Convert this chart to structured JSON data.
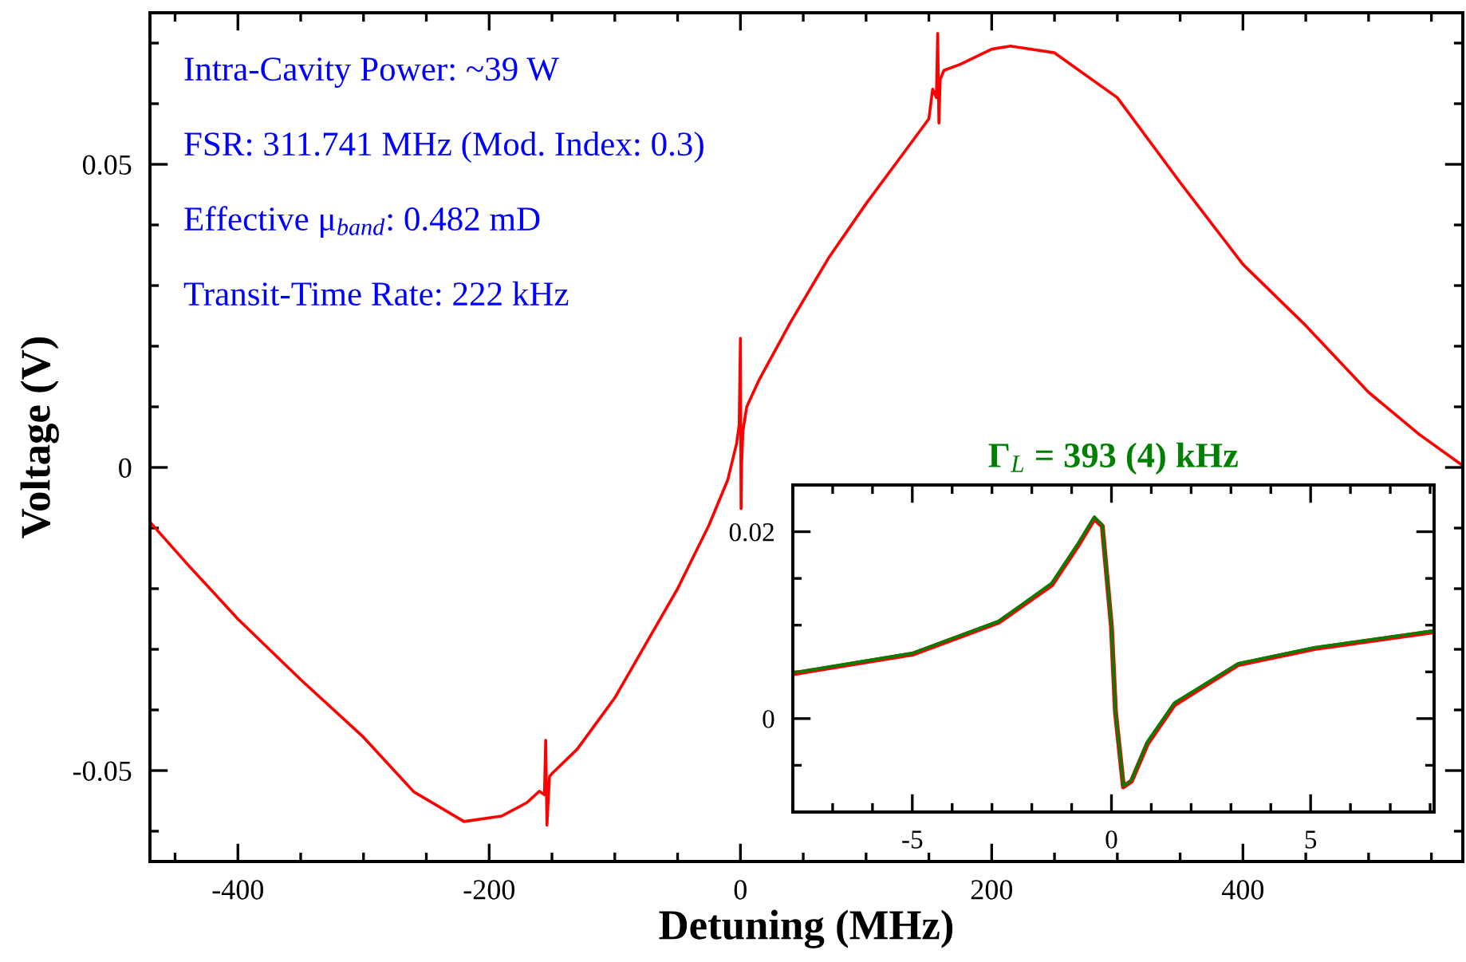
{
  "chart_data": [
    {
      "type": "line",
      "xlabel": "Detuning (MHz)",
      "ylabel": "Voltage (V)",
      "annotations": [
        "Intra-Cavity Power: ~39 W",
        "FSR: 311.741 MHz (Mod. Index: 0.3)",
        "Effective μ$_{band}$: 0.482 mD",
        "Transit-Time Rate: 222 kHz"
      ],
      "xlim": [
        -470,
        575
      ],
      "ylim": [
        -0.065,
        0.075
      ],
      "xticks": [
        {
          "value": -400,
          "label": "-400"
        },
        {
          "value": -200,
          "label": "-200"
        },
        0,
        200,
        400
      ],
      "yticks": [
        {
          "value": -0.05,
          "label": "-0.05"
        },
        0,
        0.05
      ],
      "grid": false,
      "legend": false,
      "series": [
        {
          "color": "#ff0000",
          "x": [
            -470,
            -440,
            -400,
            -350,
            -300,
            -260,
            -220,
            -190,
            -170,
            -160,
            -156,
            -155,
            -154,
            -152,
            -150,
            -130,
            -100,
            -75,
            -50,
            -25,
            -10,
            -3,
            -1,
            0,
            0.5,
            1,
            2,
            5,
            15,
            40,
            70,
            100,
            125,
            150,
            153,
            156,
            157,
            158,
            159,
            162,
            175,
            200,
            215,
            250,
            300,
            350,
            400,
            450,
            500,
            540,
            575
          ],
          "values": [
            -0.009,
            -0.016,
            -0.025,
            -0.035,
            -0.0445,
            -0.0535,
            -0.0584,
            -0.0575,
            -0.0553,
            -0.0534,
            -0.054,
            -0.045,
            -0.059,
            -0.051,
            -0.0505,
            -0.0465,
            -0.038,
            -0.029,
            -0.02,
            -0.0095,
            -0.002,
            0.004,
            0.007,
            0.0213,
            -0.0068,
            0.001,
            0.006,
            0.01,
            0.0145,
            0.024,
            0.0345,
            0.0435,
            0.0505,
            0.0575,
            0.0624,
            0.061,
            0.0716,
            0.0568,
            0.064,
            0.0655,
            0.0665,
            0.069,
            0.0695,
            0.0684,
            0.061,
            0.047,
            0.0335,
            0.0234,
            0.0124,
            0.0055,
            0.0003
          ]
        }
      ]
    },
    {
      "type": "line",
      "title": "Γ$_{L}$ = 393 (4) kHz",
      "xlim": [
        -8,
        8.1
      ],
      "ylim": [
        -0.01,
        0.025
      ],
      "xticks": [
        {
          "value": -5,
          "label": "-5"
        },
        0,
        5
      ],
      "yticks": [
        0,
        0.02
      ],
      "grid": false,
      "legend": false,
      "series": [
        {
          "color": "#ff0000",
          "x": [
            -8,
            -5,
            -2.84,
            -1.5,
            -0.83,
            -0.43,
            -0.23,
            0,
            0.1,
            0.3,
            0.5,
            0.9,
            1.58,
            3.19,
            5.1,
            8.09
          ],
          "values": [
            0.0048,
            0.0069,
            0.0103,
            0.0143,
            0.0186,
            0.0214,
            0.0206,
            0.0098,
            0.0007,
            -0.0073,
            -0.0067,
            -0.0027,
            0.0015,
            0.0058,
            0.0075,
            0.0093
          ]
        },
        {
          "color": "#008000",
          "x": [
            -8,
            -5,
            -2.84,
            -1.5,
            -0.83,
            -0.43,
            -0.23,
            0,
            0.1,
            0.3,
            0.5,
            0.9,
            1.58,
            3.19,
            5.1,
            8.09
          ],
          "values": [
            0.0049,
            0.007,
            0.0104,
            0.0145,
            0.0188,
            0.0216,
            0.0207,
            0.0098,
            0.0007,
            -0.0072,
            -0.0066,
            -0.0025,
            0.0017,
            0.0059,
            0.0076,
            0.0094
          ]
        }
      ]
    }
  ]
}
